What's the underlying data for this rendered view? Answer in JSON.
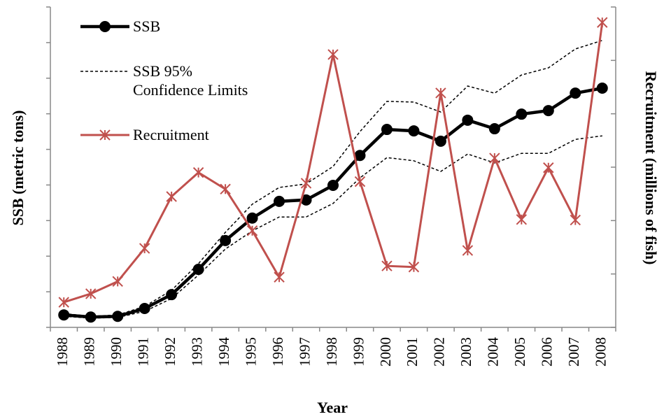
{
  "chart_data": {
    "type": "line",
    "x_label": "Year",
    "y_label": "SSB (metric tons)",
    "y2_label": "Recruitment (millions of fish)",
    "categories": [
      "1988",
      "1989",
      "1990",
      "1991",
      "1992",
      "1993",
      "1994",
      "1995",
      "1996",
      "1997",
      "1998",
      "1999",
      "2000",
      "2001",
      "2002",
      "2003",
      "2004",
      "2005",
      "2006",
      "2007",
      "2008"
    ],
    "ylim": [
      0,
      9
    ],
    "yticks": [
      0,
      1,
      2,
      3,
      4,
      5,
      6,
      7,
      8,
      9
    ],
    "y2lim": [
      0,
      6
    ],
    "y2ticks": [
      0,
      1,
      2,
      3,
      4,
      5,
      6
    ],
    "series": [
      {
        "name": "SSB",
        "color": "#000000",
        "marker": "circle",
        "values": [
          0.35,
          0.29,
          0.31,
          0.53,
          0.92,
          1.63,
          2.44,
          3.07,
          3.54,
          3.58,
          3.99,
          4.83,
          5.56,
          5.52,
          5.23,
          5.82,
          5.58,
          5.99,
          6.09,
          6.58,
          6.72
        ]
      },
      {
        "name": "SSB 95%\nConfidence Limits",
        "color": "#000000",
        "dashed": true,
        "upper": [
          0.39,
          0.31,
          0.35,
          0.59,
          1.04,
          1.79,
          2.67,
          3.46,
          3.93,
          4.03,
          4.52,
          5.5,
          6.35,
          6.33,
          6.05,
          6.78,
          6.58,
          7.09,
          7.29,
          7.82,
          8.06
        ],
        "lower": [
          0.31,
          0.26,
          0.28,
          0.45,
          0.81,
          1.47,
          2.2,
          2.71,
          3.1,
          3.1,
          3.48,
          4.2,
          4.77,
          4.68,
          4.38,
          4.87,
          4.62,
          4.89,
          4.89,
          5.28,
          5.38
        ]
      },
      {
        "name": "Recruitment",
        "color": "#c0504d",
        "marker": "star",
        "axis": "y2",
        "values": [
          0.47,
          0.63,
          0.86,
          1.48,
          2.45,
          2.9,
          2.59,
          1.81,
          0.94,
          2.7,
          5.11,
          2.73,
          1.15,
          1.13,
          4.39,
          1.44,
          3.17,
          2.02,
          2.99,
          2.01,
          5.71
        ]
      }
    ]
  }
}
